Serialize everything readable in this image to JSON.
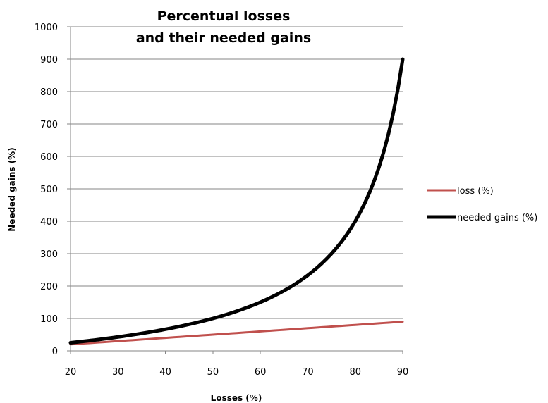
{
  "chart_data": {
    "type": "line",
    "title_lines": [
      "Percentual losses",
      "and their needed gains"
    ],
    "xlabel": "Losses (%)",
    "ylabel": "Needed gains (%)",
    "xlim": [
      20,
      90
    ],
    "ylim": [
      0,
      1000
    ],
    "xticks": [
      20,
      30,
      40,
      50,
      60,
      70,
      80,
      90
    ],
    "yticks": [
      0,
      100,
      200,
      300,
      400,
      500,
      600,
      700,
      800,
      900,
      1000
    ],
    "grid": "horizontal",
    "legend_position": "right",
    "x": [
      20,
      21,
      22,
      23,
      24,
      25,
      26,
      27,
      28,
      29,
      30,
      31,
      32,
      33,
      34,
      35,
      36,
      37,
      38,
      39,
      40,
      41,
      42,
      43,
      44,
      45,
      46,
      47,
      48,
      49,
      50,
      51,
      52,
      53,
      54,
      55,
      56,
      57,
      58,
      59,
      60,
      61,
      62,
      63,
      64,
      65,
      66,
      67,
      68,
      69,
      70,
      71,
      72,
      73,
      74,
      75,
      76,
      77,
      78,
      79,
      80,
      81,
      82,
      83,
      84,
      85,
      86,
      87,
      88,
      89,
      90
    ],
    "series": [
      {
        "name": "loss (%)",
        "color": "#C0504D",
        "values": [
          20,
          21,
          22,
          23,
          24,
          25,
          26,
          27,
          28,
          29,
          30,
          31,
          32,
          33,
          34,
          35,
          36,
          37,
          38,
          39,
          40,
          41,
          42,
          43,
          44,
          45,
          46,
          47,
          48,
          49,
          50,
          51,
          52,
          53,
          54,
          55,
          56,
          57,
          58,
          59,
          60,
          61,
          62,
          63,
          64,
          65,
          66,
          67,
          68,
          69,
          70,
          71,
          72,
          73,
          74,
          75,
          76,
          77,
          78,
          79,
          80,
          81,
          82,
          83,
          84,
          85,
          86,
          87,
          88,
          89,
          90
        ]
      },
      {
        "name": "needed gains (%)",
        "color": "#000000",
        "values": [
          25,
          26.6,
          28.2,
          29.9,
          31.6,
          33.3,
          35.1,
          37,
          38.9,
          40.8,
          42.9,
          44.9,
          47.1,
          49.3,
          51.5,
          53.8,
          56.3,
          58.7,
          61.3,
          63.9,
          66.7,
          69.5,
          72.4,
          75.4,
          78.6,
          81.8,
          85.2,
          88.7,
          92.3,
          96.1,
          100,
          104.1,
          108.3,
          112.8,
          117.4,
          122.2,
          127.3,
          132.6,
          138.1,
          143.9,
          150,
          156.4,
          163.2,
          170.3,
          177.8,
          185.7,
          194.1,
          203,
          212.5,
          222.6,
          233.3,
          244.8,
          257.1,
          270.4,
          284.6,
          300,
          316.7,
          334.8,
          354.5,
          376.2,
          400,
          426.3,
          455.6,
          488.2,
          525,
          566.7,
          614.3,
          669.2,
          733.3,
          809.1,
          900
        ]
      }
    ]
  }
}
